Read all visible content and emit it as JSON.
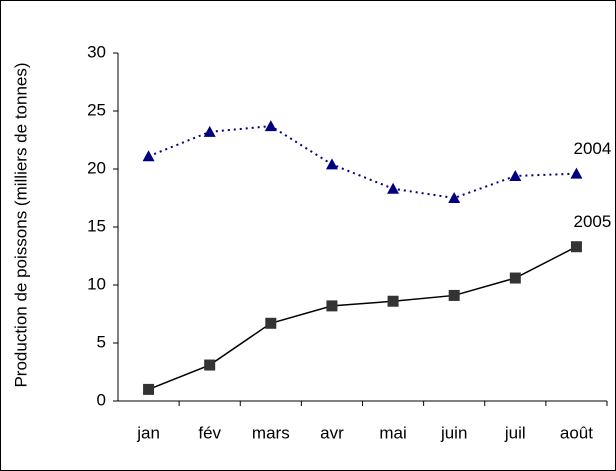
{
  "chart_data": {
    "type": "line",
    "y_label": "Production de poissons (milliers de tonnes)",
    "categories": [
      "jan",
      "fév",
      "mars",
      "avr",
      "mai",
      "juin",
      "juil",
      "août"
    ],
    "series": [
      {
        "name": "2004",
        "color": "#000080",
        "line_style": "dotted",
        "marker": "triangle",
        "values": [
          21.1,
          23.2,
          23.7,
          20.4,
          18.3,
          17.5,
          19.4,
          19.6
        ]
      },
      {
        "name": "2005",
        "color": "#000000",
        "line_style": "solid",
        "marker": "square",
        "values": [
          1.0,
          3.1,
          6.7,
          8.2,
          8.6,
          9.1,
          10.6,
          13.3
        ]
      }
    ],
    "ylim": [
      0,
      30
    ],
    "yticks": [
      0,
      5,
      10,
      15,
      20,
      25,
      30
    ],
    "grid": false
  }
}
